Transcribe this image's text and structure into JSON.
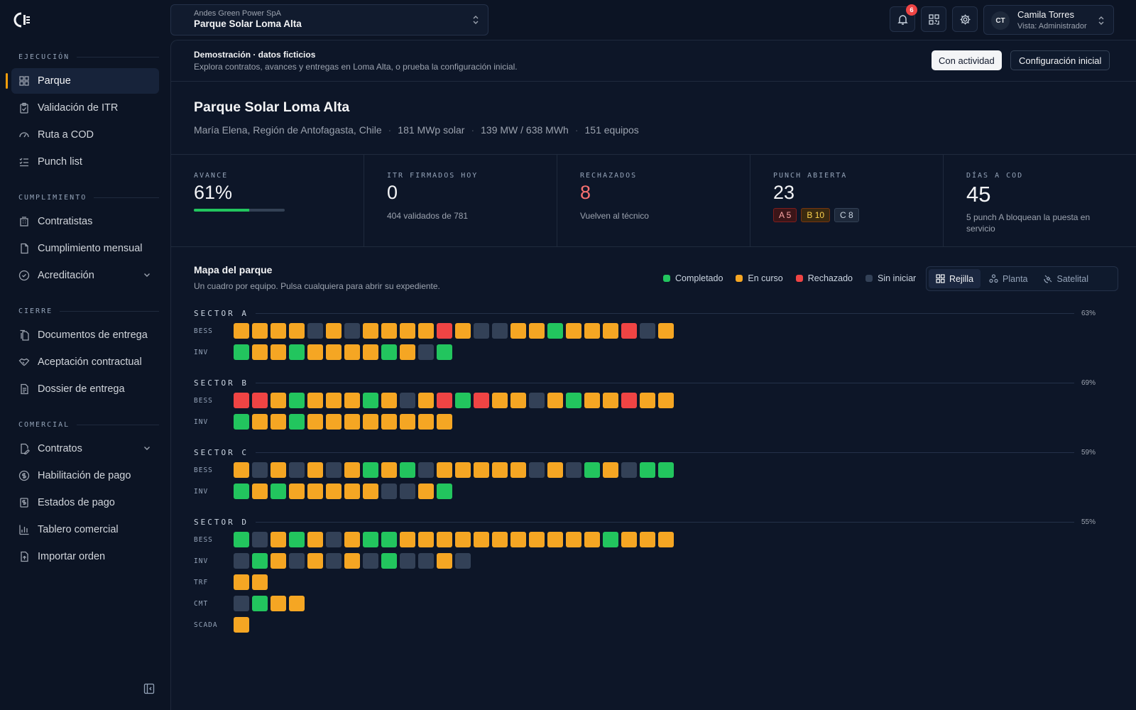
{
  "colors": {
    "completed": "#22c55e",
    "in_progress": "#f5a623",
    "rejected": "#ef4444",
    "not_started": "#334157",
    "accent": "#f59e0b"
  },
  "sidebar": {
    "sections": [
      {
        "title": "EJECUCIÓN",
        "items": [
          {
            "label": "Parque",
            "icon": "grid-icon",
            "active": true
          },
          {
            "label": "Validación de ITR",
            "icon": "clipboard-check-icon"
          },
          {
            "label": "Ruta a COD",
            "icon": "gauge-icon"
          },
          {
            "label": "Punch list",
            "icon": "list-check-icon"
          }
        ]
      },
      {
        "title": "CUMPLIMIENTO",
        "items": [
          {
            "label": "Contratistas",
            "icon": "building-icon"
          },
          {
            "label": "Cumplimiento mensual",
            "icon": "file-icon"
          },
          {
            "label": "Acreditación",
            "icon": "badge-check-icon",
            "expandable": true
          }
        ]
      },
      {
        "title": "CIERRE",
        "items": [
          {
            "label": "Documentos de entrega",
            "icon": "files-icon"
          },
          {
            "label": "Aceptación contractual",
            "icon": "handshake-icon"
          },
          {
            "label": "Dossier de entrega",
            "icon": "file-text-icon"
          }
        ]
      },
      {
        "title": "COMERCIAL",
        "items": [
          {
            "label": "Contratos",
            "icon": "file-pen-icon",
            "expandable": true
          },
          {
            "label": "Habilitación de pago",
            "icon": "dollar-circle-icon"
          },
          {
            "label": "Estados de pago",
            "icon": "receipt-icon"
          },
          {
            "label": "Tablero comercial",
            "icon": "bar-chart-icon"
          },
          {
            "label": "Importar orden",
            "icon": "file-upload-icon"
          }
        ]
      }
    ]
  },
  "topbar": {
    "org": "Andes Green Power SpA",
    "project": "Parque Solar Loma Alta",
    "notifications": "6",
    "user": {
      "initials": "CT",
      "name": "Camila Torres",
      "role": "Vista: Administrador"
    }
  },
  "demo": {
    "title": "Demostración · datos ficticios",
    "subtitle": "Explora contratos, avances y entregas en Loma Alta, o prueba la configuración inicial.",
    "btn_active": "Con actividad",
    "btn_setup": "Configuración inicial"
  },
  "project": {
    "title": "Parque Solar Loma Alta",
    "meta": [
      "María Elena, Región de Antofagasta, Chile",
      "181 MWp solar",
      "139 MW / 638 MWh",
      "151 equipos"
    ]
  },
  "kpis": {
    "avance": {
      "label": "AVANCE",
      "value": "61%",
      "progress": 0.61
    },
    "itr": {
      "label": "ITR FIRMADOS HOY",
      "value": "0",
      "sub": "404 validados de 781"
    },
    "rechazados": {
      "label": "RECHAZADOS",
      "value": "8",
      "sub": "Vuelven al técnico"
    },
    "punch": {
      "label": "PUNCH ABIERTA",
      "value": "23",
      "a": "A 5",
      "b": "B 10",
      "c": "C 8"
    },
    "cod": {
      "label": "DÍAS A COD",
      "value": "45",
      "sub": "5 punch A bloquean la puesta en servicio"
    }
  },
  "map": {
    "title": "Mapa del parque",
    "subtitle": "Un cuadro por equipo. Pulsa cualquiera para abrir su expediente.",
    "legend": {
      "completed": "Completado",
      "in_progress": "En curso",
      "rejected": "Rechazado",
      "not_started": "Sin iniciar"
    },
    "views": {
      "grid": "Rejilla",
      "plant": "Planta",
      "satellite": "Satelital"
    },
    "sectors": [
      {
        "name": "SECTOR A",
        "pct": "63%",
        "rows": [
          {
            "type": "BESS",
            "cells": "oooononooooronnoogooorno"
          },
          {
            "type": "INV",
            "cells": "googoooogong"
          }
        ]
      },
      {
        "name": "SECTOR B",
        "pct": "69%",
        "rows": [
          {
            "type": "BESS",
            "cells": "rrogooogonorgroonogooroo"
          },
          {
            "type": "INV",
            "cells": "googoooooooo"
          }
        ]
      },
      {
        "name": "SECTOR C",
        "pct": "59%",
        "rows": [
          {
            "type": "BESS",
            "cells": "onononogognooooonongongg"
          },
          {
            "type": "INV",
            "cells": "gogooooonnog"
          }
        ]
      },
      {
        "name": "SECTOR D",
        "pct": "55%",
        "rows": [
          {
            "type": "BESS",
            "cells": "gnogonoggooooooooooogooo"
          },
          {
            "type": "INV",
            "cells": "ngononongnnon"
          },
          {
            "type": "TRF",
            "cells": "oo"
          },
          {
            "type": "CMT",
            "cells": "ngoo"
          },
          {
            "type": "SCADA",
            "cells": "o"
          }
        ]
      }
    ]
  }
}
